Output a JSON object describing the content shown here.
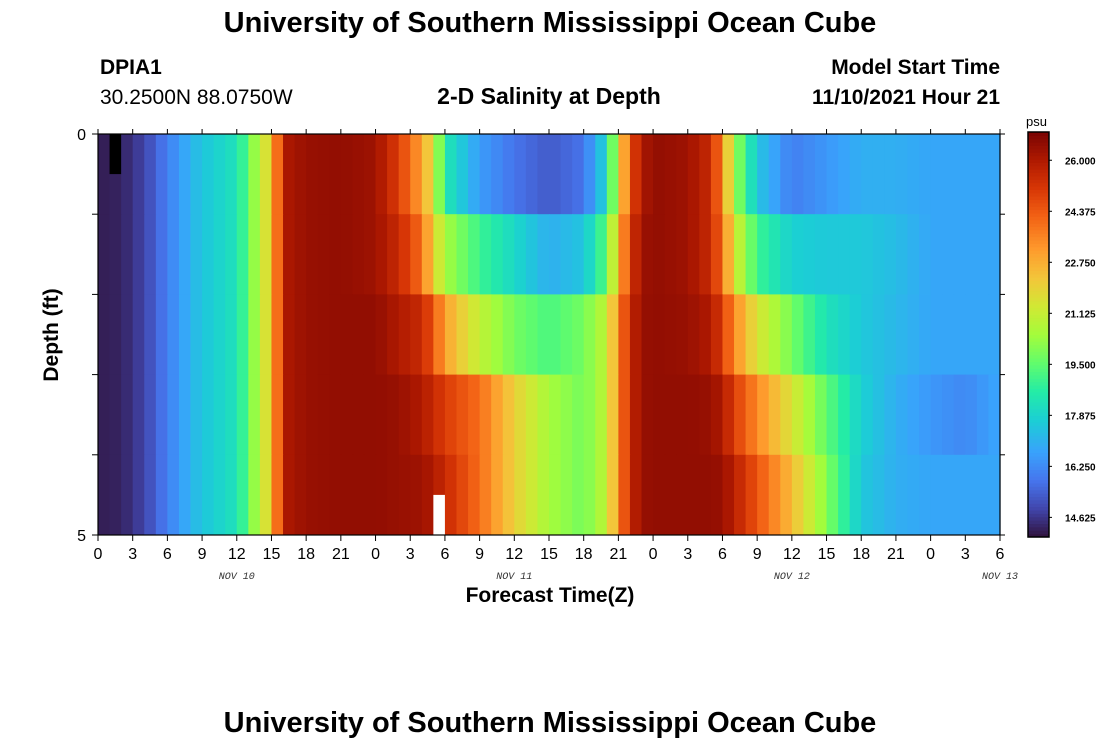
{
  "header": {
    "title": "University of Southern Mississippi Ocean Cube",
    "station": "DPIA1",
    "coords": "30.2500N  88.0750W",
    "subtitle": "2-D Salinity at Depth",
    "start_label": "Model Start Time",
    "start_value": "11/10/2021 Hour 21"
  },
  "footer": {
    "title": "University of Southern Mississippi Ocean Cube"
  },
  "chart_data": {
    "type": "heatmap",
    "title": "2-D Salinity at Depth",
    "xlabel": "Forecast Time(Z)",
    "ylabel": "Depth (ft)",
    "x_ticks": [
      "0",
      "3",
      "6",
      "9",
      "12",
      "15",
      "18",
      "21",
      "0",
      "3",
      "6",
      "9",
      "12",
      "15",
      "18",
      "21",
      "0",
      "3",
      "6",
      "9",
      "12",
      "15",
      "18",
      "21",
      "0",
      "3",
      "6"
    ],
    "x_dates": [
      {
        "label": "NOV 10",
        "hour": 12
      },
      {
        "label": "NOV 11",
        "hour": 36
      },
      {
        "label": "NOV 12",
        "hour": 60
      },
      {
        "label": "NOV 13",
        "hour": 78
      }
    ],
    "x_range_hours": [
      0,
      78
    ],
    "y_ticks": [
      "0",
      "5"
    ],
    "y_range_ft": [
      0,
      5
    ],
    "colorbar": {
      "unit": "psu",
      "ticks": [
        "26.000",
        "24.375",
        "22.750",
        "21.125",
        "19.500",
        "17.875",
        "16.250",
        "14.625"
      ],
      "range": [
        14.0,
        26.9
      ]
    },
    "depth_layers_ft": [
      0.0,
      1.0,
      2.0,
      3.0,
      4.0,
      5.0
    ],
    "anchor_hours": [
      0,
      2,
      4,
      6,
      8,
      9,
      12,
      13,
      14,
      15,
      16,
      18,
      21,
      24,
      26,
      28,
      29,
      30,
      33,
      36,
      39,
      42,
      44,
      45,
      46,
      47,
      48,
      51,
      53,
      54,
      55,
      57,
      60,
      63,
      66,
      69,
      72,
      75,
      78
    ],
    "salinity_anchors": [
      [
        14.2,
        14.3,
        14.9,
        16.0,
        17.1,
        17.5,
        18.3,
        19.5,
        21.0,
        22.0,
        26.0,
        26.4,
        26.5,
        26.3,
        25.0,
        23.0,
        21.5,
        18.5,
        16.6,
        15.8,
        15.3,
        15.8,
        18.0,
        21.5,
        24.5,
        26.0,
        26.5,
        26.3,
        25.5,
        23.5,
        20.5,
        17.5,
        16.0,
        16.5,
        17.0,
        17.0,
        16.8,
        16.8,
        16.8
      ],
      [
        14.2,
        14.3,
        14.9,
        16.0,
        17.1,
        17.5,
        18.3,
        19.5,
        21.0,
        22.0,
        26.0,
        26.4,
        26.5,
        26.3,
        25.5,
        24.0,
        22.0,
        20.5,
        19.0,
        18.0,
        17.0,
        17.5,
        19.5,
        22.5,
        25.0,
        26.3,
        26.5,
        26.3,
        25.5,
        24.0,
        21.5,
        19.0,
        17.8,
        17.6,
        17.6,
        17.3,
        16.8,
        16.8,
        16.8
      ],
      [
        14.2,
        14.3,
        14.9,
        16.0,
        17.1,
        17.5,
        18.3,
        19.5,
        21.0,
        22.0,
        26.0,
        26.4,
        26.5,
        26.5,
        26.0,
        25.5,
        24.5,
        23.0,
        21.0,
        19.8,
        19.2,
        19.8,
        21.0,
        23.5,
        25.5,
        26.4,
        26.5,
        26.4,
        26.0,
        25.0,
        23.5,
        21.5,
        19.8,
        18.3,
        17.6,
        17.2,
        16.8,
        16.8,
        16.8
      ],
      [
        14.2,
        14.3,
        14.9,
        16.0,
        17.1,
        17.5,
        18.3,
        19.5,
        21.0,
        22.0,
        26.0,
        26.4,
        26.5,
        26.5,
        26.4,
        26.0,
        25.5,
        25.0,
        24.0,
        22.0,
        20.5,
        19.8,
        21.0,
        23.5,
        25.5,
        26.4,
        26.5,
        26.5,
        26.4,
        26.0,
        25.0,
        23.5,
        21.5,
        19.5,
        17.8,
        17.0,
        16.5,
        16.2,
        16.8
      ],
      [
        14.2,
        14.3,
        14.9,
        16.0,
        17.1,
        17.5,
        18.3,
        19.5,
        21.0,
        22.0,
        26.0,
        26.4,
        26.5,
        26.5,
        26.4,
        26.3,
        26.0,
        25.5,
        24.0,
        22.0,
        20.5,
        19.8,
        21.0,
        23.5,
        25.5,
        26.4,
        26.5,
        26.5,
        26.5,
        26.4,
        25.8,
        24.5,
        22.5,
        20.0,
        17.6,
        17.0,
        16.8,
        16.8,
        16.8
      ],
      [
        14.2,
        14.3,
        14.9,
        16.0,
        17.1,
        17.5,
        18.3,
        19.5,
        21.0,
        22.0,
        26.0,
        26.4,
        26.5,
        26.5,
        26.5,
        26.5,
        26.5,
        26.6,
        24.0,
        21.5,
        20.0,
        20.0,
        20.5,
        23.0,
        25.0,
        26.0,
        26.5,
        26.5,
        26.6,
        26.6,
        26.4,
        25.5,
        24.0,
        20.5,
        17.6,
        17.0,
        16.8,
        16.8,
        16.8
      ]
    ]
  }
}
